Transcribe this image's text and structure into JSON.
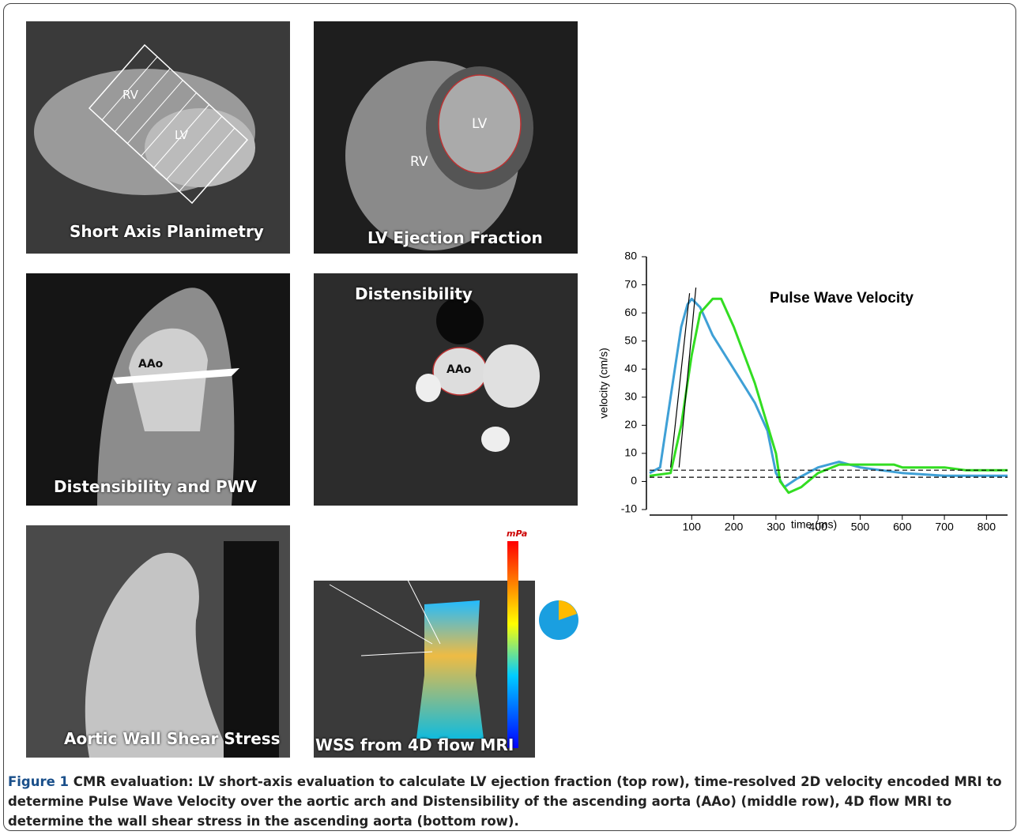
{
  "panels": [
    {
      "label": "Short Axis Planimetry",
      "annotations": [
        "RV",
        "LV"
      ]
    },
    {
      "label": "LV Ejection Fraction",
      "annotations": [
        "LV",
        "RV"
      ]
    },
    {
      "label": "Distensibility and PWV",
      "annotations": [
        "AAo"
      ]
    },
    {
      "label": "Distensibility",
      "annotations": [
        "AAo"
      ]
    },
    {
      "label": "Aortic Wall Shear Stress",
      "annotations": []
    },
    {
      "label": "WSS from 4D flow MRI",
      "annotations": [
        "mPa"
      ]
    }
  ],
  "chart_data": {
    "type": "line",
    "title": "Pulse Wave Velocity",
    "x_label": "time (ms)",
    "y_label": "velocity (cm/s)",
    "xlim": [
      0,
      850
    ],
    "ylim": [
      -10,
      80
    ],
    "xticks": [
      100,
      200,
      300,
      400,
      500,
      600,
      700,
      800
    ],
    "yticks": [
      -10,
      0,
      10,
      20,
      30,
      40,
      50,
      60,
      70,
      80
    ],
    "series": [
      {
        "color": "#3fa0d6",
        "x": [
          0,
          25,
          50,
          75,
          90,
          100,
          120,
          150,
          200,
          250,
          280,
          300,
          320,
          350,
          400,
          450,
          500,
          600,
          700,
          800,
          850
        ],
        "values": [
          3,
          5,
          30,
          55,
          63,
          65,
          62,
          52,
          40,
          28,
          18,
          3,
          -2,
          1,
          5,
          7,
          5,
          3,
          2,
          2,
          2
        ]
      },
      {
        "color": "#33dd22",
        "x": [
          0,
          50,
          75,
          100,
          120,
          150,
          170,
          200,
          250,
          300,
          310,
          330,
          360,
          400,
          450,
          500,
          580,
          600,
          700,
          750,
          800,
          850
        ],
        "values": [
          2,
          3,
          20,
          45,
          60,
          65,
          65,
          55,
          35,
          10,
          0,
          -4,
          -2,
          3,
          6,
          6,
          6,
          5,
          5,
          4,
          4,
          4
        ]
      },
      {
        "color": "#000000",
        "x": [
          50,
          95
        ],
        "values": [
          5,
          67
        ]
      },
      {
        "color": "#000000",
        "x": [
          70,
          110
        ],
        "values": [
          5,
          69
        ]
      },
      {
        "color": "#000000",
        "dashed": true,
        "x": [
          0,
          850
        ],
        "values": [
          4,
          4
        ]
      },
      {
        "color": "#000000",
        "dashed": true,
        "x": [
          0,
          850
        ],
        "values": [
          1.5,
          1.5
        ]
      }
    ]
  },
  "caption": {
    "label": "Figure 1",
    "text": "CMR evaluation: LV short-axis evaluation to calculate LV ejection fraction (top row), time-resolved 2D velocity encoded MRI to determine Pulse Wave Velocity over the aortic arch and Distensibility of the ascending aorta (AAo) (middle row), 4D flow MRI to determine the wall shear stress in the ascending aorta (bottom row)."
  }
}
